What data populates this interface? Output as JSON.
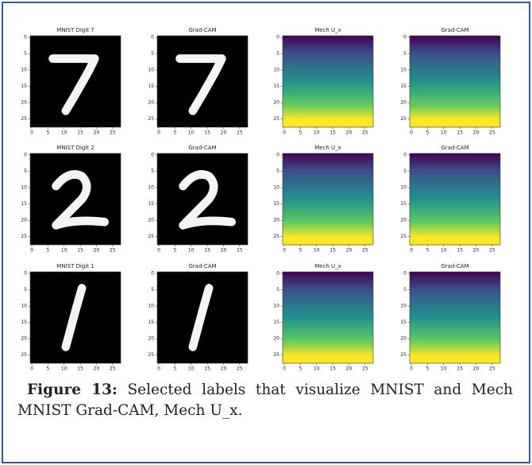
{
  "figure": {
    "panels": [
      {
        "title": "MNIST Digit 7"
      },
      {
        "title": "Grad-CAM"
      },
      {
        "title": "Mech U_x"
      },
      {
        "title": "Grad-CAM"
      },
      {
        "title": "MNIST Digit 2"
      },
      {
        "title": "Grad-CAM"
      },
      {
        "title": "Mech U_x"
      },
      {
        "title": "Grad-CAM"
      },
      {
        "title": "MNIST Digit 1"
      },
      {
        "title": "Grad-CAM"
      },
      {
        "title": "Mech U_x"
      },
      {
        "title": "Grad-CAM"
      }
    ],
    "xticks": [
      0,
      5,
      10,
      15,
      20,
      25
    ],
    "yticks": [
      0,
      5,
      10,
      15,
      20,
      25
    ],
    "caption": {
      "label": "Figure 13:",
      "text": "Selected labels that visualize MNIST and Mech MNIST Grad-CAM, Mech U_x."
    }
  }
}
